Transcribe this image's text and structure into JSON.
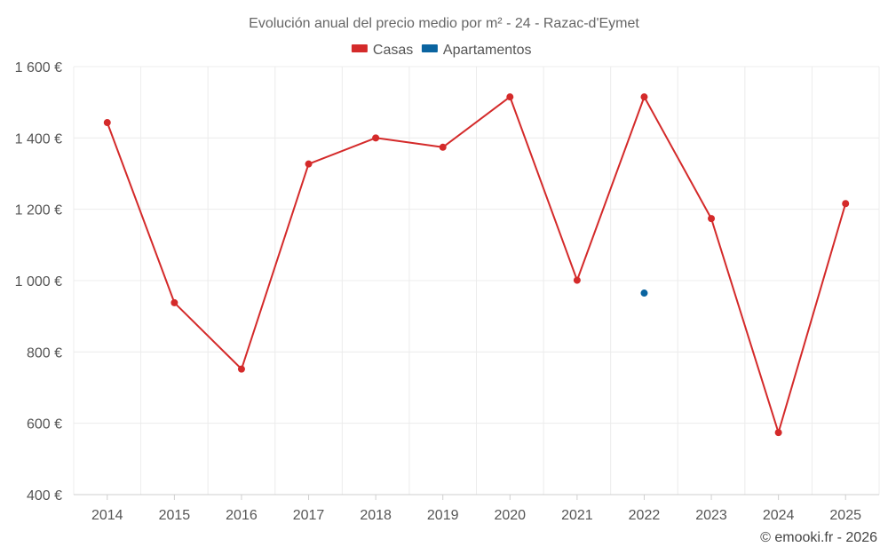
{
  "chart_data": {
    "type": "line",
    "title": "Evolución anual del precio medio por m² - 24 - Razac-d'Eymet",
    "categories": [
      "2014",
      "2015",
      "2016",
      "2017",
      "2018",
      "2019",
      "2020",
      "2021",
      "2022",
      "2023",
      "2024",
      "2025"
    ],
    "series": [
      {
        "name": "Casas",
        "color": "#d42a2a",
        "values": [
          1443,
          938,
          752,
          1327,
          1400,
          1374,
          1515,
          1001,
          1515,
          1174,
          574,
          1216
        ]
      },
      {
        "name": "Apartamentos",
        "color": "#0a64a0",
        "values": [
          null,
          null,
          null,
          null,
          null,
          null,
          null,
          null,
          965,
          null,
          null,
          null
        ]
      }
    ],
    "yticks": [
      400,
      600,
      800,
      1000,
      1200,
      1400,
      1600
    ],
    "ytick_labels": [
      "400 €",
      "600 €",
      "800 €",
      "1 000 €",
      "1 200 €",
      "1 400 €",
      "1 600 €"
    ],
    "ylim": [
      400,
      1600
    ],
    "xlabel": "",
    "ylabel": "",
    "grid": true,
    "legend": "top-center"
  },
  "credit": "© emooki.fr - 2026"
}
